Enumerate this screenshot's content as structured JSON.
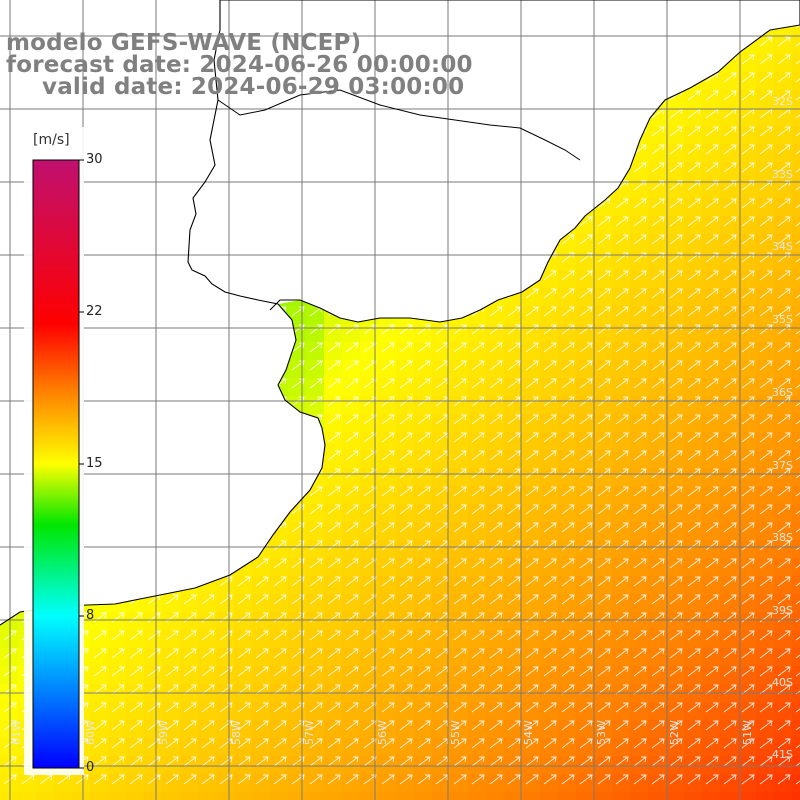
{
  "title": {
    "line1": "modelo GEFS-WAVE (NCEP)",
    "line2": "forecast date: 2024-06-26 00:00:00",
    "line3": "valid date: 2024-06-29 03:00:00"
  },
  "colorbar": {
    "unit": "[m/s]",
    "ticks": [
      "30",
      "22",
      "15",
      "8",
      "0"
    ],
    "colors": [
      "#c0106f",
      "#ff0000",
      "#ff8000",
      "#ffff00",
      "#00e600",
      "#00ffff",
      "#0000ff"
    ]
  },
  "map": {
    "colors": {
      "land": "#ffffff",
      "coast": "#000000",
      "grid": "#7a7a7a",
      "arrows": "#ffffff"
    },
    "lat_labels": [
      "32S",
      "33S",
      "34S",
      "35S",
      "36S",
      "37S",
      "38S",
      "39S",
      "40S",
      "41S"
    ],
    "lon_labels": [
      "61W",
      "60W",
      "59W",
      "58W",
      "57W",
      "56W",
      "55W",
      "54W",
      "53W",
      "52W",
      "51W"
    ],
    "arrow_direction": "north-east"
  }
}
